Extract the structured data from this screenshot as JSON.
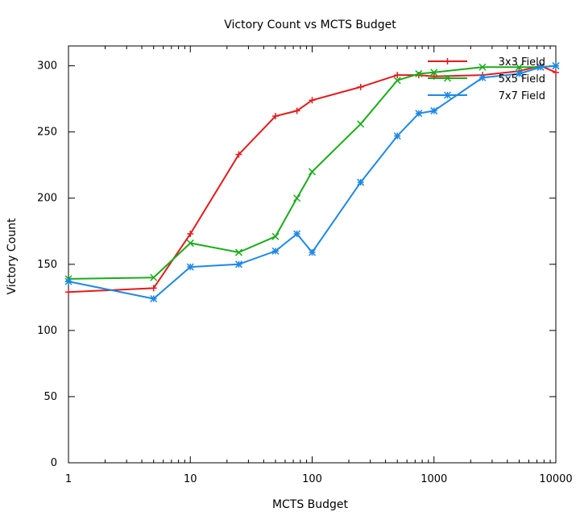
{
  "chart_data": {
    "type": "line",
    "title": "Victory Count vs MCTS Budget",
    "xlabel": "MCTS Budget",
    "ylabel": "Victory Count",
    "xscale": "log",
    "xlim": [
      1,
      10000
    ],
    "ylim": [
      0,
      315
    ],
    "xticks": [
      1,
      10,
      100,
      1000,
      10000
    ],
    "xtick_labels": [
      "1",
      "10",
      "100",
      "1000",
      "10000"
    ],
    "yticks": [
      0,
      50,
      100,
      150,
      200,
      250,
      300
    ],
    "ytick_labels": [
      "0",
      "50",
      "100",
      "150",
      "200",
      "250",
      "300"
    ],
    "grid": false,
    "legend_position": "top-right",
    "series": [
      {
        "name": "3x3 Field",
        "color": "#e41a1c",
        "marker": "plus",
        "x": [
          1,
          5,
          10,
          25,
          50,
          75,
          100,
          250,
          500,
          750,
          1000,
          2500,
          5000,
          7500,
          10000
        ],
        "y": [
          129,
          132,
          173,
          233,
          262,
          266,
          274,
          284,
          293,
          293,
          292,
          293,
          296,
          300,
          295
        ]
      },
      {
        "name": "5x5 Field",
        "color": "#1aac1a",
        "marker": "cross",
        "x": [
          1,
          5,
          10,
          25,
          50,
          75,
          100,
          250,
          500,
          750,
          1000,
          2500,
          5000,
          7500,
          10000
        ],
        "y": [
          139,
          140,
          166,
          159,
          171,
          200,
          220,
          256,
          289,
          294,
          295,
          299,
          299,
          299,
          300
        ]
      },
      {
        "name": "7x7 Field",
        "color": "#1e88e5",
        "marker": "star",
        "x": [
          1,
          5,
          10,
          25,
          50,
          75,
          100,
          250,
          500,
          750,
          1000,
          2500,
          5000,
          7500,
          10000
        ],
        "y": [
          137,
          124,
          148,
          150,
          160,
          173,
          159,
          212,
          247,
          264,
          266,
          291,
          294,
          299,
          300
        ]
      }
    ]
  }
}
